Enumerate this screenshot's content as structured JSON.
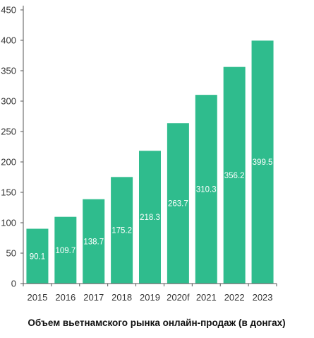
{
  "chart_data": {
    "type": "bar",
    "title": "Объем вьетнамского рынка онлайн-продаж (в донгах)",
    "categories": [
      "2015",
      "2016",
      "2017",
      "2018",
      "2019",
      "2020f",
      "2021",
      "2022",
      "2023"
    ],
    "values": [
      90.1,
      109.7,
      138.7,
      175.2,
      218.3,
      263.7,
      310.3,
      356.2,
      399.5
    ],
    "data_labels": [
      "90.1",
      "109.7",
      "138.7",
      "175.2",
      "218.3",
      "263.7",
      "310.3",
      "356.2",
      "399.5"
    ],
    "yticks": [
      0,
      50,
      100,
      150,
      200,
      250,
      300,
      350,
      400,
      450
    ],
    "ylim": [
      0,
      450
    ],
    "xlabel": "",
    "ylabel": "",
    "grid": false,
    "legend": "none",
    "bar_color": "#2fbc8d",
    "axis_color": "#555555",
    "text_color": "#333333"
  }
}
